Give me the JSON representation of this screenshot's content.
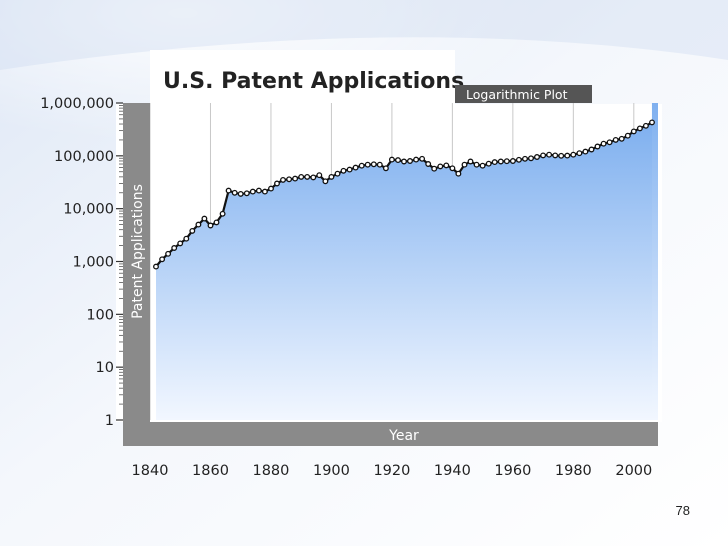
{
  "page_number": "78",
  "colors": {
    "area_top": "#7fb0ef",
    "area_bottom": "#f2f7ff",
    "axis_band": "#8a8a8a",
    "line": "#111111",
    "marker_fill": "#ffffff"
  },
  "chart_data": {
    "type": "line",
    "title": "U.S. Patent Applications",
    "subtitle": "Logarithmic Plot",
    "xlabel": "Year",
    "ylabel": "Patent Applications",
    "y_scale": "log",
    "xlim": [
      1840,
      2008
    ],
    "ylim": [
      1,
      1000000
    ],
    "x_ticks": [
      "1840",
      "1860",
      "1880",
      "1900",
      "1920",
      "1940",
      "1960",
      "1980",
      "2000"
    ],
    "y_ticks": [
      "1,000,000",
      "100,000",
      "10,000",
      "1,000",
      "100",
      "10",
      "1"
    ],
    "grid": "vertical",
    "series": [
      {
        "x": [
          1842,
          1844,
          1846,
          1848,
          1850,
          1852,
          1854,
          1856,
          1858,
          1860,
          1862,
          1864,
          1866,
          1868,
          1870,
          1872,
          1874,
          1876,
          1878,
          1880,
          1882,
          1884,
          1886,
          1888,
          1890,
          1892,
          1894,
          1896,
          1898,
          1900,
          1902,
          1904,
          1906,
          1908,
          1910,
          1912,
          1914,
          1916,
          1918,
          1920,
          1922,
          1924,
          1926,
          1928,
          1930,
          1932,
          1934,
          1936,
          1938,
          1940,
          1942,
          1944,
          1946,
          1948,
          1950,
          1952,
          1954,
          1956,
          1958,
          1960,
          1962,
          1964,
          1966,
          1968,
          1970,
          1972,
          1974,
          1976,
          1978,
          1980,
          1982,
          1984,
          1986,
          1988,
          1990,
          1992,
          1994,
          1996,
          1998,
          2000,
          2002,
          2004,
          2006
        ],
        "y": [
          800,
          1100,
          1400,
          1800,
          2200,
          2700,
          3800,
          5000,
          6500,
          4800,
          5500,
          8000,
          22000,
          20000,
          19000,
          19500,
          21000,
          22000,
          21000,
          24000,
          30000,
          35000,
          36000,
          37000,
          40000,
          40000,
          39000,
          43000,
          33000,
          40000,
          46000,
          52000,
          55000,
          60000,
          65000,
          68000,
          69000,
          68000,
          58000,
          85000,
          83000,
          78000,
          80000,
          85000,
          88000,
          70000,
          57000,
          63000,
          66000,
          58000,
          46000,
          68000,
          78000,
          68000,
          65000,
          71000,
          76000,
          78000,
          79000,
          80000,
          84000,
          88000,
          90000,
          95000,
          102000,
          105000,
          102000,
          100000,
          101000,
          105000,
          112000,
          120000,
          132000,
          150000,
          170000,
          180000,
          200000,
          210000,
          240000,
          290000,
          330000,
          370000,
          430000
        ]
      }
    ]
  }
}
